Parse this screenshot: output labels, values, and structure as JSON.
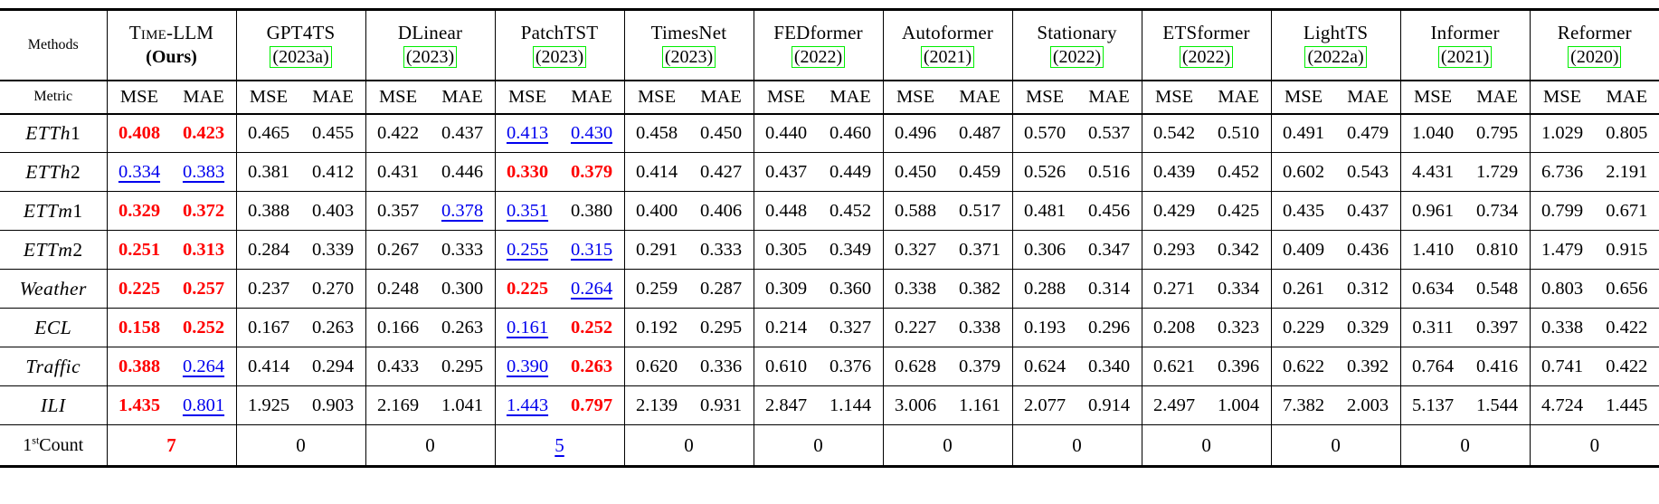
{
  "header": {
    "methods_label": "Methods",
    "metric_label": "Metric",
    "mse": "MSE",
    "mae": "MAE"
  },
  "colors": {
    "best": "#fe0000",
    "second_best": "#0000ee",
    "citation_box": "#00ee00",
    "text": "#000000",
    "background": "#ffffff"
  },
  "legend_semantics": {
    "best": "red bold",
    "second": "blue underlined"
  },
  "methods": [
    {
      "name": "Time-LLM",
      "subtitle": "(Ours)",
      "smallcaps": true,
      "ours": true,
      "boxed": false
    },
    {
      "name": "GPT4TS",
      "subtitle": "(2023a)",
      "boxed": true
    },
    {
      "name": "DLinear",
      "subtitle": "(2023)",
      "boxed": true
    },
    {
      "name": "PatchTST",
      "subtitle": "(2023)",
      "boxed": true
    },
    {
      "name": "TimesNet",
      "subtitle": "(2023)",
      "boxed": true
    },
    {
      "name": "FEDformer",
      "subtitle": "(2022)",
      "boxed": true
    },
    {
      "name": "Autoformer",
      "subtitle": "(2021)",
      "boxed": true
    },
    {
      "name": "Stationary",
      "subtitle": "(2022)",
      "boxed": true
    },
    {
      "name": "ETSformer",
      "subtitle": "(2022)",
      "boxed": true
    },
    {
      "name": "LightTS",
      "subtitle": "(2022a)",
      "boxed": true
    },
    {
      "name": "Informer",
      "subtitle": "(2021)",
      "boxed": true
    },
    {
      "name": "Reformer",
      "subtitle": "(2020)",
      "boxed": true
    }
  ],
  "rows": [
    {
      "dataset": "ETTh1",
      "values": [
        [
          "0.408",
          "best"
        ],
        [
          "0.423",
          "best"
        ],
        [
          "0.465",
          ""
        ],
        [
          "0.455",
          ""
        ],
        [
          "0.422",
          ""
        ],
        [
          "0.437",
          ""
        ],
        [
          "0.413",
          "second"
        ],
        [
          "0.430",
          "second"
        ],
        [
          "0.458",
          ""
        ],
        [
          "0.450",
          ""
        ],
        [
          "0.440",
          ""
        ],
        [
          "0.460",
          ""
        ],
        [
          "0.496",
          ""
        ],
        [
          "0.487",
          ""
        ],
        [
          "0.570",
          ""
        ],
        [
          "0.537",
          ""
        ],
        [
          "0.542",
          ""
        ],
        [
          "0.510",
          ""
        ],
        [
          "0.491",
          ""
        ],
        [
          "0.479",
          ""
        ],
        [
          "1.040",
          ""
        ],
        [
          "0.795",
          ""
        ],
        [
          "1.029",
          ""
        ],
        [
          "0.805",
          ""
        ]
      ]
    },
    {
      "dataset": "ETTh2",
      "values": [
        [
          "0.334",
          "second"
        ],
        [
          "0.383",
          "second"
        ],
        [
          "0.381",
          ""
        ],
        [
          "0.412",
          ""
        ],
        [
          "0.431",
          ""
        ],
        [
          "0.446",
          ""
        ],
        [
          "0.330",
          "best"
        ],
        [
          "0.379",
          "best"
        ],
        [
          "0.414",
          ""
        ],
        [
          "0.427",
          ""
        ],
        [
          "0.437",
          ""
        ],
        [
          "0.449",
          ""
        ],
        [
          "0.450",
          ""
        ],
        [
          "0.459",
          ""
        ],
        [
          "0.526",
          ""
        ],
        [
          "0.516",
          ""
        ],
        [
          "0.439",
          ""
        ],
        [
          "0.452",
          ""
        ],
        [
          "0.602",
          ""
        ],
        [
          "0.543",
          ""
        ],
        [
          "4.431",
          ""
        ],
        [
          "1.729",
          ""
        ],
        [
          "6.736",
          ""
        ],
        [
          "2.191",
          ""
        ]
      ]
    },
    {
      "dataset": "ETTm1",
      "values": [
        [
          "0.329",
          "best"
        ],
        [
          "0.372",
          "best"
        ],
        [
          "0.388",
          ""
        ],
        [
          "0.403",
          ""
        ],
        [
          "0.357",
          ""
        ],
        [
          "0.378",
          "second"
        ],
        [
          "0.351",
          "second"
        ],
        [
          "0.380",
          ""
        ],
        [
          "0.400",
          ""
        ],
        [
          "0.406",
          ""
        ],
        [
          "0.448",
          ""
        ],
        [
          "0.452",
          ""
        ],
        [
          "0.588",
          ""
        ],
        [
          "0.517",
          ""
        ],
        [
          "0.481",
          ""
        ],
        [
          "0.456",
          ""
        ],
        [
          "0.429",
          ""
        ],
        [
          "0.425",
          ""
        ],
        [
          "0.435",
          ""
        ],
        [
          "0.437",
          ""
        ],
        [
          "0.961",
          ""
        ],
        [
          "0.734",
          ""
        ],
        [
          "0.799",
          ""
        ],
        [
          "0.671",
          ""
        ]
      ]
    },
    {
      "dataset": "ETTm2",
      "values": [
        [
          "0.251",
          "best"
        ],
        [
          "0.313",
          "best"
        ],
        [
          "0.284",
          ""
        ],
        [
          "0.339",
          ""
        ],
        [
          "0.267",
          ""
        ],
        [
          "0.333",
          ""
        ],
        [
          "0.255",
          "second"
        ],
        [
          "0.315",
          "second"
        ],
        [
          "0.291",
          ""
        ],
        [
          "0.333",
          ""
        ],
        [
          "0.305",
          ""
        ],
        [
          "0.349",
          ""
        ],
        [
          "0.327",
          ""
        ],
        [
          "0.371",
          ""
        ],
        [
          "0.306",
          ""
        ],
        [
          "0.347",
          ""
        ],
        [
          "0.293",
          ""
        ],
        [
          "0.342",
          ""
        ],
        [
          "0.409",
          ""
        ],
        [
          "0.436",
          ""
        ],
        [
          "1.410",
          ""
        ],
        [
          "0.810",
          ""
        ],
        [
          "1.479",
          ""
        ],
        [
          "0.915",
          ""
        ]
      ]
    },
    {
      "dataset": "Weather",
      "values": [
        [
          "0.225",
          "best"
        ],
        [
          "0.257",
          "best"
        ],
        [
          "0.237",
          ""
        ],
        [
          "0.270",
          ""
        ],
        [
          "0.248",
          ""
        ],
        [
          "0.300",
          ""
        ],
        [
          "0.225",
          "best"
        ],
        [
          "0.264",
          "second"
        ],
        [
          "0.259",
          ""
        ],
        [
          "0.287",
          ""
        ],
        [
          "0.309",
          ""
        ],
        [
          "0.360",
          ""
        ],
        [
          "0.338",
          ""
        ],
        [
          "0.382",
          ""
        ],
        [
          "0.288",
          ""
        ],
        [
          "0.314",
          ""
        ],
        [
          "0.271",
          ""
        ],
        [
          "0.334",
          ""
        ],
        [
          "0.261",
          ""
        ],
        [
          "0.312",
          ""
        ],
        [
          "0.634",
          ""
        ],
        [
          "0.548",
          ""
        ],
        [
          "0.803",
          ""
        ],
        [
          "0.656",
          ""
        ]
      ]
    },
    {
      "dataset": "ECL",
      "values": [
        [
          "0.158",
          "best"
        ],
        [
          "0.252",
          "best"
        ],
        [
          "0.167",
          ""
        ],
        [
          "0.263",
          ""
        ],
        [
          "0.166",
          ""
        ],
        [
          "0.263",
          ""
        ],
        [
          "0.161",
          "second"
        ],
        [
          "0.252",
          "best"
        ],
        [
          "0.192",
          ""
        ],
        [
          "0.295",
          ""
        ],
        [
          "0.214",
          ""
        ],
        [
          "0.327",
          ""
        ],
        [
          "0.227",
          ""
        ],
        [
          "0.338",
          ""
        ],
        [
          "0.193",
          ""
        ],
        [
          "0.296",
          ""
        ],
        [
          "0.208",
          ""
        ],
        [
          "0.323",
          ""
        ],
        [
          "0.229",
          ""
        ],
        [
          "0.329",
          ""
        ],
        [
          "0.311",
          ""
        ],
        [
          "0.397",
          ""
        ],
        [
          "0.338",
          ""
        ],
        [
          "0.422",
          ""
        ]
      ]
    },
    {
      "dataset": "Traffic",
      "values": [
        [
          "0.388",
          "best"
        ],
        [
          "0.264",
          "second"
        ],
        [
          "0.414",
          ""
        ],
        [
          "0.294",
          ""
        ],
        [
          "0.433",
          ""
        ],
        [
          "0.295",
          ""
        ],
        [
          "0.390",
          "second"
        ],
        [
          "0.263",
          "best"
        ],
        [
          "0.620",
          ""
        ],
        [
          "0.336",
          ""
        ],
        [
          "0.610",
          ""
        ],
        [
          "0.376",
          ""
        ],
        [
          "0.628",
          ""
        ],
        [
          "0.379",
          ""
        ],
        [
          "0.624",
          ""
        ],
        [
          "0.340",
          ""
        ],
        [
          "0.621",
          ""
        ],
        [
          "0.396",
          ""
        ],
        [
          "0.622",
          ""
        ],
        [
          "0.392",
          ""
        ],
        [
          "0.764",
          ""
        ],
        [
          "0.416",
          ""
        ],
        [
          "0.741",
          ""
        ],
        [
          "0.422",
          ""
        ]
      ]
    },
    {
      "dataset": "ILI",
      "values": [
        [
          "1.435",
          "best"
        ],
        [
          "0.801",
          "second"
        ],
        [
          "1.925",
          ""
        ],
        [
          "0.903",
          ""
        ],
        [
          "2.169",
          ""
        ],
        [
          "1.041",
          ""
        ],
        [
          "1.443",
          "second"
        ],
        [
          "0.797",
          "best"
        ],
        [
          "2.139",
          ""
        ],
        [
          "0.931",
          ""
        ],
        [
          "2.847",
          ""
        ],
        [
          "1.144",
          ""
        ],
        [
          "3.006",
          ""
        ],
        [
          "1.161",
          ""
        ],
        [
          "2.077",
          ""
        ],
        [
          "0.914",
          ""
        ],
        [
          "2.497",
          ""
        ],
        [
          "1.004",
          ""
        ],
        [
          "7.382",
          ""
        ],
        [
          "2.003",
          ""
        ],
        [
          "5.137",
          ""
        ],
        [
          "1.544",
          ""
        ],
        [
          "4.724",
          ""
        ],
        [
          "1.445",
          ""
        ]
      ]
    }
  ],
  "count_row": {
    "label_prefix": "1",
    "label_sup": "st",
    "label_text": "Count",
    "values": [
      [
        "7",
        "best"
      ],
      [
        "0",
        ""
      ],
      [
        "0",
        ""
      ],
      [
        "5",
        "second"
      ],
      [
        "0",
        ""
      ],
      [
        "0",
        ""
      ],
      [
        "0",
        ""
      ],
      [
        "0",
        ""
      ],
      [
        "0",
        ""
      ],
      [
        "0",
        ""
      ],
      [
        "0",
        ""
      ],
      [
        "0",
        ""
      ]
    ]
  }
}
